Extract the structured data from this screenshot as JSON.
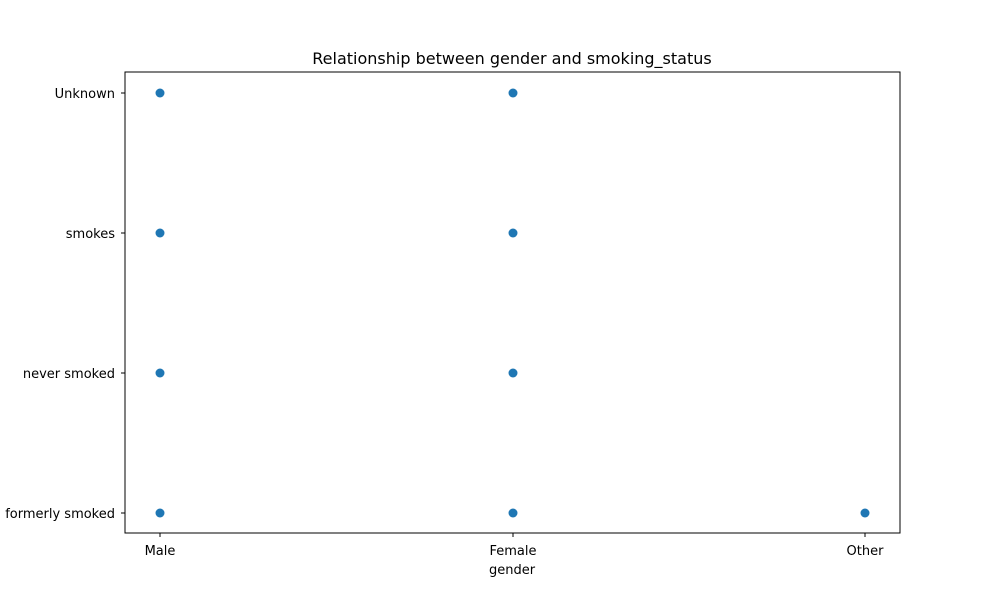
{
  "chart_data": {
    "type": "scatter",
    "title": "Relationship between gender and smoking_status",
    "xlabel": "gender",
    "ylabel": "",
    "x_categories": [
      "Male",
      "Female",
      "Other"
    ],
    "y_categories": [
      "formerly smoked",
      "never smoked",
      "smokes",
      "Unknown"
    ],
    "points": [
      {
        "x": "Male",
        "y": "Unknown"
      },
      {
        "x": "Male",
        "y": "smokes"
      },
      {
        "x": "Male",
        "y": "never smoked"
      },
      {
        "x": "Male",
        "y": "formerly smoked"
      },
      {
        "x": "Female",
        "y": "Unknown"
      },
      {
        "x": "Female",
        "y": "smokes"
      },
      {
        "x": "Female",
        "y": "never smoked"
      },
      {
        "x": "Female",
        "y": "formerly smoked"
      },
      {
        "x": "Other",
        "y": "formerly smoked"
      }
    ],
    "marker_color": "#1f77b4",
    "grid": false,
    "legend": "none"
  }
}
